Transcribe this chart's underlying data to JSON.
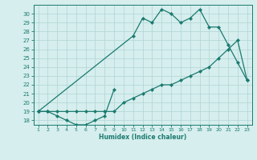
{
  "xlabel": "Humidex (Indice chaleur)",
  "x_values": [
    1,
    2,
    3,
    4,
    5,
    6,
    7,
    8,
    9,
    10,
    11,
    12,
    13,
    14,
    15,
    16,
    17,
    18,
    19,
    20,
    21,
    22,
    23
  ],
  "line1_y": [
    19,
    19,
    18.5,
    18,
    17.5,
    17.5,
    18,
    18.5,
    21.5,
    null,
    null,
    null,
    null,
    null,
    null,
    null,
    null,
    null,
    null,
    null,
    null,
    null,
    null
  ],
  "line2_y": [
    19,
    19,
    19,
    19,
    19,
    19,
    19,
    19,
    19,
    20,
    20.5,
    21,
    21.5,
    22,
    22,
    22.5,
    23,
    23.5,
    24,
    25,
    26,
    27,
    22.5
  ],
  "line3_y": [
    19,
    null,
    null,
    null,
    null,
    null,
    null,
    null,
    null,
    null,
    27.5,
    29.5,
    29,
    30.5,
    30,
    29,
    29.5,
    30.5,
    28.5,
    28.5,
    26.5,
    24.5,
    22.5
  ],
  "ylim": [
    17.5,
    31.0
  ],
  "xlim": [
    0.5,
    23.5
  ],
  "yticks": [
    18,
    19,
    20,
    21,
    22,
    23,
    24,
    25,
    26,
    27,
    28,
    29,
    30
  ],
  "xticks": [
    1,
    2,
    3,
    4,
    5,
    6,
    7,
    8,
    9,
    10,
    11,
    12,
    13,
    14,
    15,
    16,
    17,
    18,
    19,
    20,
    21,
    22,
    23
  ],
  "bg_color": "#d6eeee",
  "grid_color": "#b0d4d4",
  "line_color": "#1a7a6e",
  "marker": "D",
  "markersize": 2.2,
  "linewidth": 0.9
}
